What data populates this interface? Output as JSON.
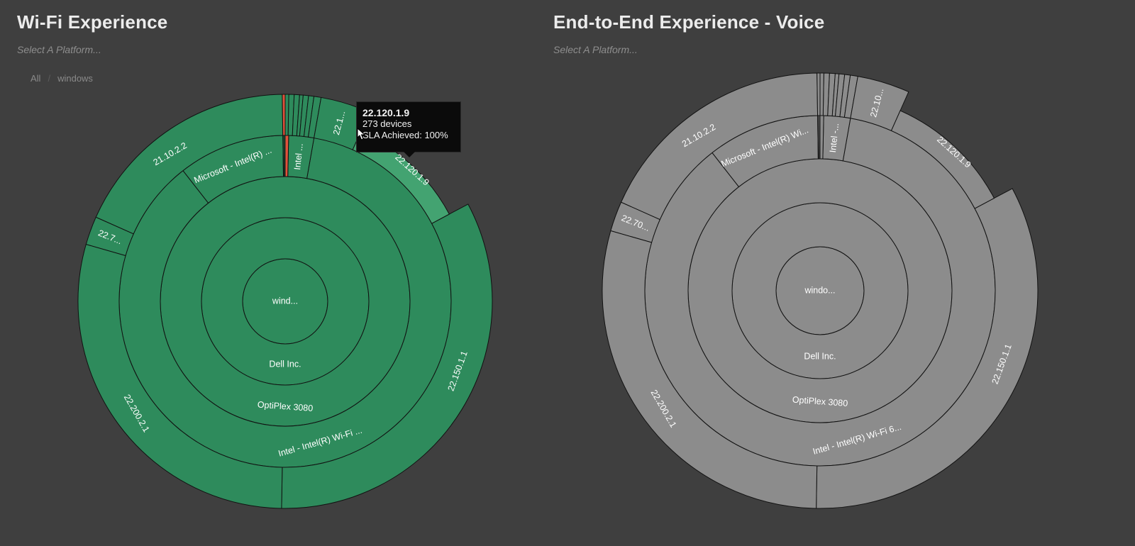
{
  "colors": {
    "background": "#3f3f3f",
    "wifi_fill": "#2e8b5c",
    "wifi_highlight": "#43a371",
    "voice_fill": "#8c8c8c",
    "stroke": "#111111",
    "accent_red": "#e0533c"
  },
  "wifi_panel": {
    "title": "Wi-Fi Experience",
    "subtitle": "Select A Platform...",
    "breadcrumb": [
      "All",
      "windows"
    ],
    "tooltip": {
      "title": "22.120.1.9",
      "line1": "273 devices",
      "line2": "SLA Achieved: 100%"
    },
    "labels": {
      "platform": "wind...",
      "manufacturer": "Dell Inc.",
      "model": "OptiPlex 3080",
      "adapter_intel": "Intel - Intel(R) Wi-Fi ...",
      "adapter_microsoft": "Microsoft - Intel(R) ...",
      "adapter_intel_small": "Intel ...",
      "driver_1": "21.10.2.2",
      "driver_2": "22.1...",
      "driver_3": "22.120.1.9",
      "driver_4": "22.150.1.1",
      "driver_5": "22.200.2.1",
      "driver_6": "22.7..."
    }
  },
  "voice_panel": {
    "title": "End-to-End Experience - Voice",
    "subtitle": "Select A Platform...",
    "labels": {
      "platform": "windo...",
      "manufacturer": "Dell Inc.",
      "model": "OptiPlex 3080",
      "adapter_intel": "Intel - Intel(R) Wi-Fi 6...",
      "adapter_microsoft": "Microsoft - Intel(R) Wi...",
      "adapter_intel_small": "Intel -...",
      "driver_1": "21.10.2.2",
      "driver_2": "22.10...",
      "driver_3": "22.120.1.9",
      "driver_4": "22.150.1.1",
      "driver_5": "22.200.2.1",
      "driver_6": "22.70..."
    }
  }
}
